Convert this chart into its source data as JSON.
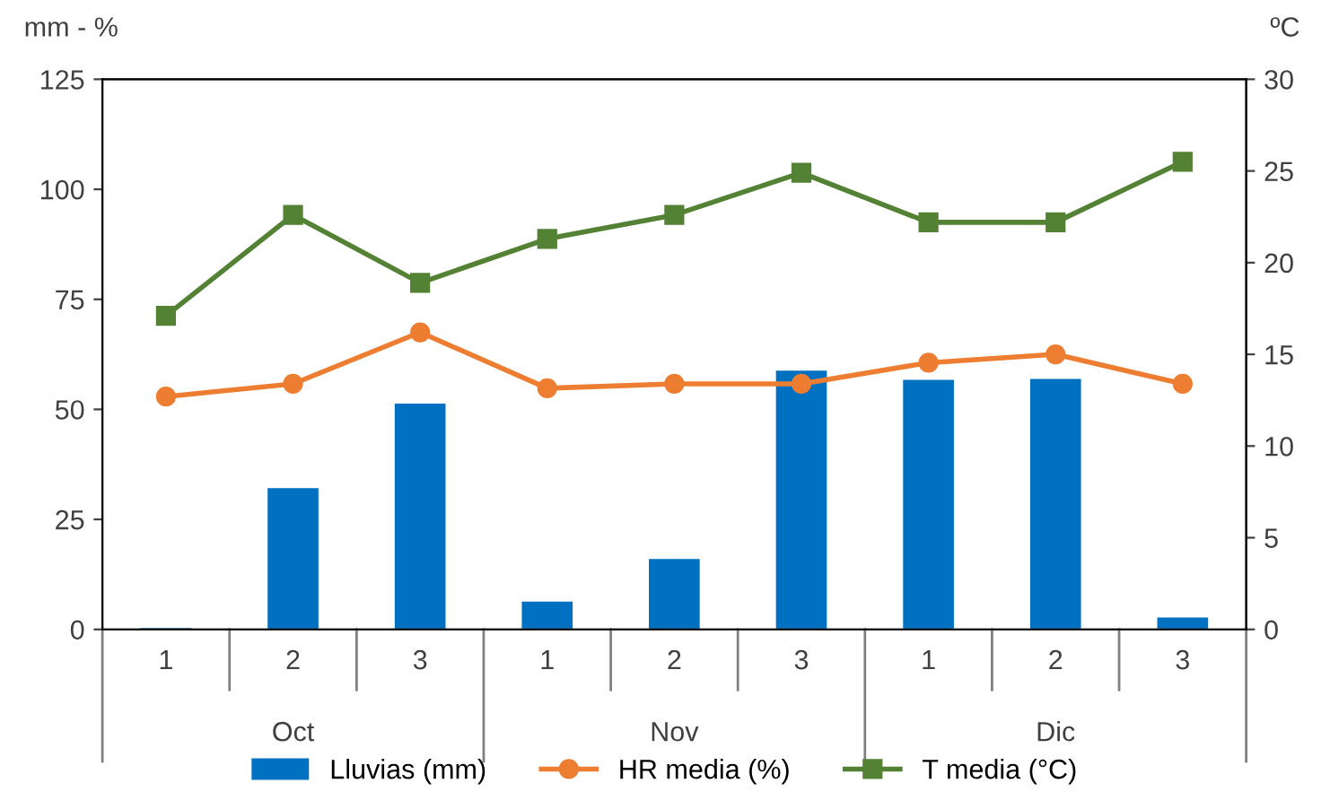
{
  "chart_data": {
    "type": "bar",
    "ylabel": "mm - %",
    "y2label": "ºC",
    "categories": [
      "1",
      "2",
      "3",
      "1",
      "2",
      "3",
      "1",
      "2",
      "3"
    ],
    "annotations": [
      "Oct",
      "Nov",
      "Dic"
    ],
    "series": [
      {
        "name": "Lluvias (mm)",
        "color": "#0070c0",
        "values": [
          0.3,
          32.1,
          51.3,
          6.3,
          16,
          58.8,
          56.7,
          56.9,
          2.7
        ]
      },
      {
        "name": "HR media (%)",
        "type": "line",
        "color": "#ed7d31",
        "marker": "circle",
        "values": [
          52.9,
          55.8,
          67.5,
          54.8,
          55.8,
          55.8,
          60.6,
          62.5,
          55.8
        ]
      },
      {
        "name": "T media (°C)",
        "type": "line",
        "axis": "y2",
        "color": "#548235",
        "marker": "square",
        "values": [
          17.1,
          22.6,
          18.9,
          21.3,
          22.6,
          24.9,
          22.2,
          22.2,
          25.5
        ]
      }
    ],
    "ylim": [
      0,
      125
    ],
    "yticks": [
      0,
      25,
      50,
      75,
      100,
      125
    ],
    "y2lim": [
      0,
      30
    ],
    "y2ticks": [
      0,
      5,
      10,
      15,
      20,
      25,
      30
    ],
    "grid": false,
    "legend": "bottom"
  }
}
